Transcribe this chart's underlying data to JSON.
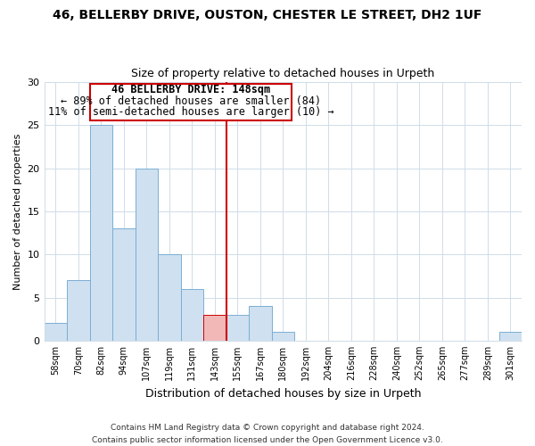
{
  "title1": "46, BELLERBY DRIVE, OUSTON, CHESTER LE STREET, DH2 1UF",
  "title2": "Size of property relative to detached houses in Urpeth",
  "xlabel": "Distribution of detached houses by size in Urpeth",
  "ylabel": "Number of detached properties",
  "bar_labels": [
    "58sqm",
    "70sqm",
    "82sqm",
    "94sqm",
    "107sqm",
    "119sqm",
    "131sqm",
    "143sqm",
    "155sqm",
    "167sqm",
    "180sqm",
    "192sqm",
    "204sqm",
    "216sqm",
    "228sqm",
    "240sqm",
    "252sqm",
    "265sqm",
    "277sqm",
    "289sqm",
    "301sqm"
  ],
  "bar_values": [
    2,
    7,
    25,
    13,
    20,
    10,
    6,
    3,
    3,
    4,
    1,
    0,
    0,
    0,
    0,
    0,
    0,
    0,
    0,
    0,
    1
  ],
  "bar_color": "#cfe0f0",
  "bar_edge_color": "#7bafd4",
  "highlight_bar_index": 7,
  "highlight_bar_color": "#f2b8b8",
  "highlight_bar_edge_color": "#cc0000",
  "vline_color": "#cc0000",
  "ylim": [
    0,
    30
  ],
  "yticks": [
    0,
    5,
    10,
    15,
    20,
    25,
    30
  ],
  "box_text_line1": "46 BELLERBY DRIVE: 148sqm",
  "box_text_line2": "← 89% of detached houses are smaller (84)",
  "box_text_line3": "11% of semi-detached houses are larger (10) →",
  "footer1": "Contains HM Land Registry data © Crown copyright and database right 2024.",
  "footer2": "Contains public sector information licensed under the Open Government Licence v3.0.",
  "background_color": "#ffffff",
  "grid_color": "#d0dce8"
}
